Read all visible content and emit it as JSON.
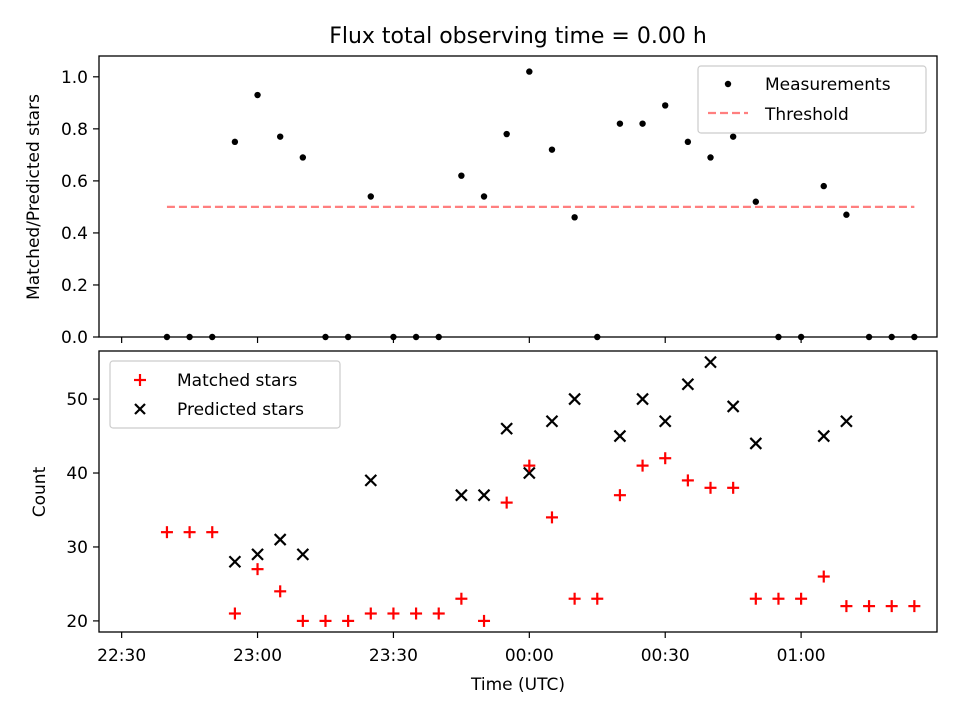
{
  "chart_data": [
    {
      "type": "scatter",
      "title": "Flux total observing time = 0.00 h",
      "xlabel": "",
      "ylabel": "Matched/Predicted stars",
      "ylim": [
        0,
        1.08
      ],
      "yticks": [
        "0.0",
        "0.2",
        "0.4",
        "0.6",
        "0.8",
        "1.0"
      ],
      "ytick_values": [
        0,
        0.2,
        0.4,
        0.6,
        0.8,
        1.0
      ],
      "grid": false,
      "legend": "top-right",
      "series": [
        {
          "name": "Measurements",
          "marker": "dot",
          "color": "#000000",
          "points": [
            [
              "22:40",
              0
            ],
            [
              "22:45",
              0
            ],
            [
              "22:50",
              0
            ],
            [
              "22:55",
              0.75
            ],
            [
              "23:00",
              0.93
            ],
            [
              "23:05",
              0.77
            ],
            [
              "23:10",
              0.69
            ],
            [
              "23:15",
              0
            ],
            [
              "23:20",
              0
            ],
            [
              "23:25",
              0.54
            ],
            [
              "23:30",
              0
            ],
            [
              "23:35",
              0
            ],
            [
              "23:40",
              0
            ],
            [
              "23:45",
              0.62
            ],
            [
              "23:50",
              0.54
            ],
            [
              "23:55",
              0.78
            ],
            [
              "00:00",
              1.02
            ],
            [
              "00:05",
              0.72
            ],
            [
              "00:10",
              0.46
            ],
            [
              "00:15",
              0
            ],
            [
              "00:20",
              0.82
            ],
            [
              "00:25",
              0.82
            ],
            [
              "00:30",
              0.89
            ],
            [
              "00:35",
              0.75
            ],
            [
              "00:40",
              0.69
            ],
            [
              "00:45",
              0.77
            ],
            [
              "00:50",
              0.52
            ],
            [
              "00:55",
              0
            ],
            [
              "01:00",
              0
            ],
            [
              "01:05",
              0.58
            ],
            [
              "01:10",
              0.47
            ],
            [
              "01:15",
              0
            ],
            [
              "01:20",
              0
            ],
            [
              "01:25",
              0
            ]
          ]
        },
        {
          "name": "Threshold",
          "type": "line",
          "style": "dashed",
          "color": "#ff7f7f",
          "points": [
            [
              "22:40",
              0.5
            ],
            [
              "01:25",
              0.5
            ]
          ]
        }
      ]
    },
    {
      "type": "scatter",
      "title": "",
      "xlabel": "Time (UTC)",
      "ylabel": "Count",
      "ylim": [
        18.5,
        56.5
      ],
      "yticks": [
        "20",
        "30",
        "40",
        "50"
      ],
      "ytick_values": [
        20,
        30,
        40,
        50
      ],
      "xlim": [
        "22:25",
        "01:30"
      ],
      "xticks": [
        "22:30",
        "23:00",
        "23:30",
        "00:00",
        "00:30",
        "01:00"
      ],
      "grid": false,
      "legend": "top-left",
      "series": [
        {
          "name": "Matched stars",
          "marker": "plus",
          "color": "#ff0000",
          "points": [
            [
              "22:40",
              32
            ],
            [
              "22:45",
              32
            ],
            [
              "22:50",
              32
            ],
            [
              "22:55",
              21
            ],
            [
              "23:00",
              27
            ],
            [
              "23:05",
              24
            ],
            [
              "23:10",
              20
            ],
            [
              "23:15",
              20
            ],
            [
              "23:20",
              20
            ],
            [
              "23:25",
              21
            ],
            [
              "23:30",
              21
            ],
            [
              "23:35",
              21
            ],
            [
              "23:40",
              21
            ],
            [
              "23:45",
              23
            ],
            [
              "23:50",
              20
            ],
            [
              "23:55",
              36
            ],
            [
              "00:00",
              41
            ],
            [
              "00:05",
              34
            ],
            [
              "00:10",
              23
            ],
            [
              "00:15",
              23
            ],
            [
              "00:20",
              37
            ],
            [
              "00:25",
              41
            ],
            [
              "00:30",
              42
            ],
            [
              "00:35",
              39
            ],
            [
              "00:40",
              38
            ],
            [
              "00:45",
              38
            ],
            [
              "00:50",
              23
            ],
            [
              "00:55",
              23
            ],
            [
              "01:00",
              23
            ],
            [
              "01:05",
              26
            ],
            [
              "01:10",
              22
            ],
            [
              "01:15",
              22
            ],
            [
              "01:20",
              22
            ],
            [
              "01:25",
              22
            ]
          ]
        },
        {
          "name": "Predicted stars",
          "marker": "x",
          "color": "#000000",
          "points": [
            [
              "22:55",
              28
            ],
            [
              "23:00",
              29
            ],
            [
              "23:05",
              31
            ],
            [
              "23:10",
              29
            ],
            [
              "23:25",
              39
            ],
            [
              "23:45",
              37
            ],
            [
              "23:50",
              37
            ],
            [
              "23:55",
              46
            ],
            [
              "00:00",
              40
            ],
            [
              "00:05",
              47
            ],
            [
              "00:10",
              50
            ],
            [
              "00:20",
              45
            ],
            [
              "00:25",
              50
            ],
            [
              "00:30",
              47
            ],
            [
              "00:35",
              52
            ],
            [
              "00:40",
              55
            ],
            [
              "00:45",
              49
            ],
            [
              "00:50",
              44
            ],
            [
              "01:05",
              45
            ],
            [
              "01:10",
              47
            ]
          ]
        }
      ]
    }
  ]
}
